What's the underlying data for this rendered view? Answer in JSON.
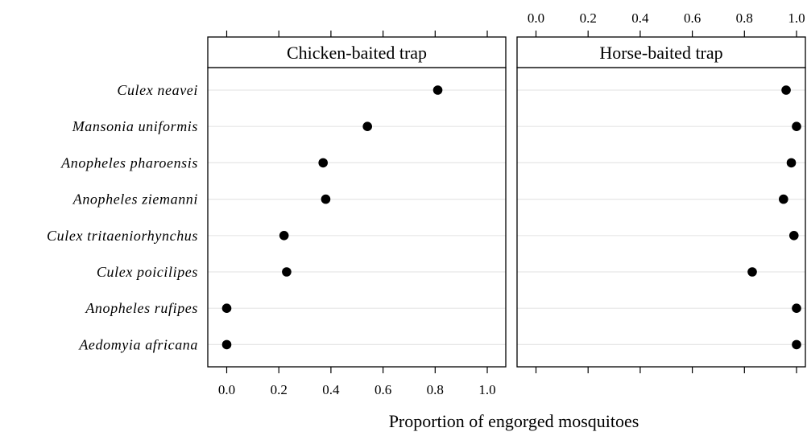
{
  "chart_data": {
    "type": "scatter",
    "xlabel": "Proportion of engorged mosquitoes",
    "xlim": [
      -0.07,
      1.07
    ],
    "ticks": [
      0.0,
      0.2,
      0.4,
      0.6,
      0.8,
      1.0
    ],
    "tick_labels": [
      "0.0",
      "0.2",
      "0.4",
      "0.6",
      "0.8",
      "1.0"
    ],
    "categories": [
      "Culex neavei",
      "Mansonia uniformis",
      "Anopheles pharoensis",
      "Anopheles ziemanni",
      "Culex tritaeniorhynchus",
      "Culex poicilipes",
      "Anopheles rufipes",
      "Aedomyia africana"
    ],
    "panels": [
      {
        "title": "Chicken-baited trap",
        "values": [
          0.81,
          0.54,
          0.37,
          0.38,
          0.22,
          0.23,
          0.0,
          0.0
        ]
      },
      {
        "title": "Horse-baited trap",
        "values": [
          0.96,
          1.0,
          0.98,
          0.95,
          0.99,
          0.83,
          1.0,
          1.0
        ]
      }
    ],
    "grid": true,
    "legend": "none",
    "marker_color": "#000000",
    "grid_color": "#e6e6e6"
  }
}
